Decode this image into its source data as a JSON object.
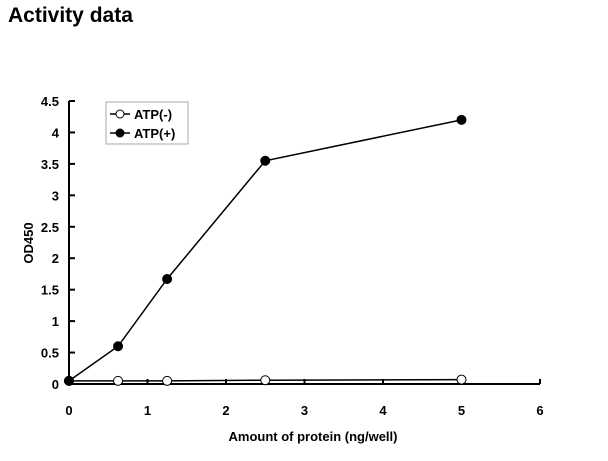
{
  "page_title": "Activity data",
  "chart_data": {
    "type": "line",
    "title": "",
    "xlabel": "Amount of protein (ng/well)",
    "ylabel": "OD450",
    "xlim": [
      0,
      6
    ],
    "ylim": [
      0,
      4.5
    ],
    "xticks": [
      "0",
      "1",
      "2",
      "3",
      "4",
      "5",
      "6"
    ],
    "yticks": [
      "0",
      "0.5",
      "1",
      "1.5",
      "2",
      "2.5",
      "3",
      "3.5",
      "4",
      "4.5"
    ],
    "grid": false,
    "legend": "top-left",
    "x": [
      0,
      0.625,
      1.25,
      2.5,
      5
    ],
    "series": [
      {
        "name": "ATP(-)",
        "values": [
          0.05,
          0.05,
          0.05,
          0.06,
          0.07
        ],
        "marker": "open-circle",
        "color": "#000000"
      },
      {
        "name": "ATP(+)",
        "values": [
          0.05,
          0.6,
          1.67,
          3.55,
          4.2
        ],
        "marker": "filled-circle",
        "color": "#000000"
      }
    ]
  }
}
